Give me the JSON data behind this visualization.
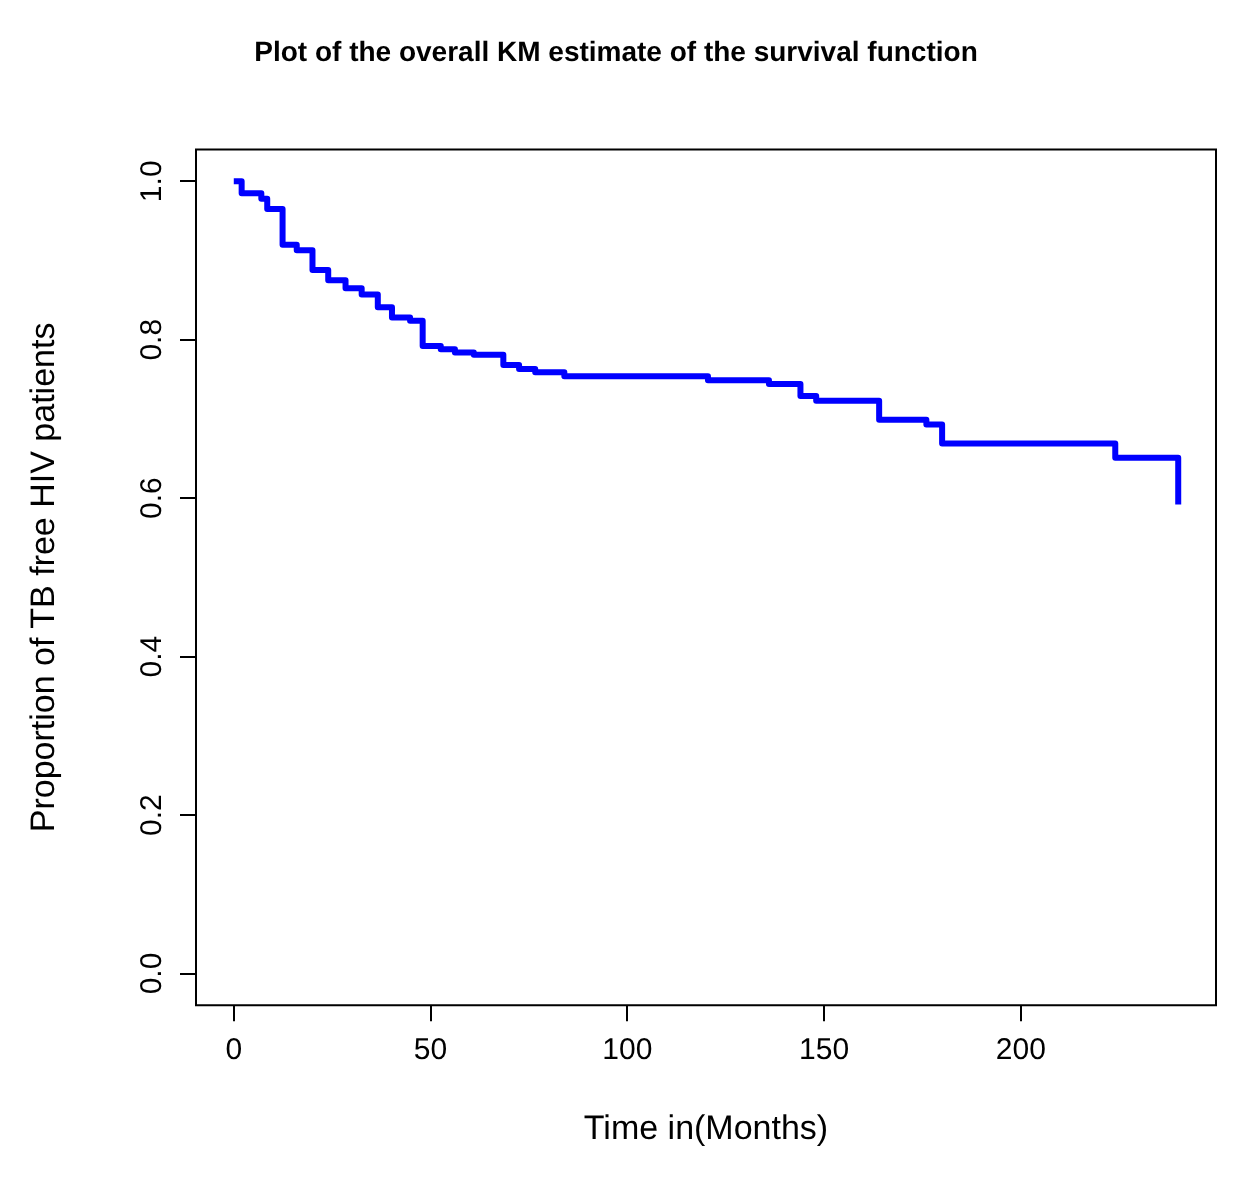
{
  "chart_data": {
    "type": "step",
    "title": "Plot of the overall KM estimate of the survival function",
    "xlabel": "Time in(Months)",
    "ylabel": "Proportion of TB free HIV patients",
    "x": [
      0,
      2,
      7,
      8.5,
      12.4,
      16,
      20,
      24,
      28.4,
      32.5,
      36.6,
      40.2,
      44.8,
      48,
      52.6,
      56.2,
      61,
      68.5,
      72.5,
      76.6,
      84,
      120.5,
      136,
      144,
      148,
      164,
      176,
      180,
      224,
      240
    ],
    "series": [
      {
        "color": "#0000ff",
        "values": [
          1.0,
          0.985,
          0.978,
          0.965,
          0.92,
          0.913,
          0.888,
          0.875,
          0.865,
          0.857,
          0.841,
          0.828,
          0.824,
          0.792,
          0.788,
          0.784,
          0.781,
          0.768,
          0.763,
          0.759,
          0.754,
          0.749,
          0.744,
          0.729,
          0.723,
          0.699,
          0.693,
          0.669,
          0.651,
          0.592
        ]
      }
    ],
    "xlim": [
      -9.6,
      249.6
    ],
    "ylim": [
      -0.04,
      1.04
    ],
    "xticks": [
      0,
      50,
      100,
      150,
      200
    ],
    "yticks": [
      {
        "value": 0,
        "label": "0.0"
      },
      {
        "value": 0.2,
        "label": "0.2"
      },
      {
        "value": 0.4,
        "label": "0.4"
      },
      {
        "value": 0.6,
        "label": "0.6"
      },
      {
        "value": 0.8,
        "label": "0.8"
      },
      {
        "value": 1,
        "label": "1.0"
      }
    ],
    "grid": false,
    "legend": false
  }
}
